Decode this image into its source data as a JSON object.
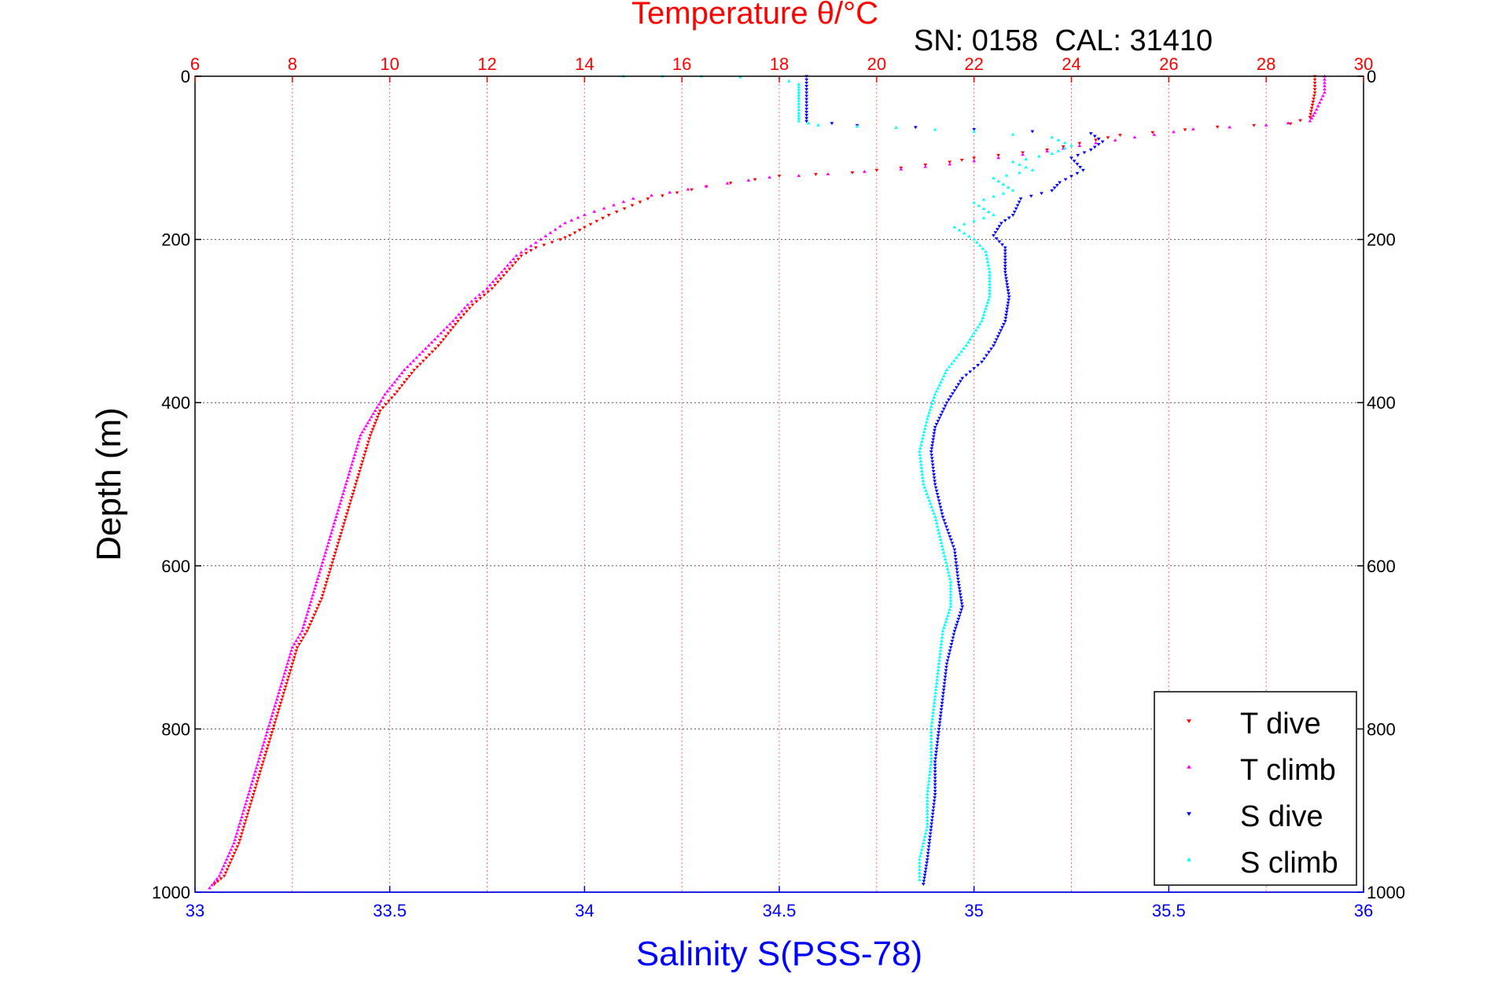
{
  "chart_data": {
    "type": "scatter",
    "title_top": "Temperature θ/°C",
    "annotation": "SN: 0158  CAL: 31410",
    "xlabel": "Salinity S(PSS-78)",
    "ylabel": "Depth (m)",
    "y_axis": {
      "range": [
        0,
        1000
      ],
      "reversed": true,
      "ticks": [
        0,
        200,
        400,
        600,
        800,
        1000
      ],
      "grid": true
    },
    "x_bottom": {
      "quantity": "salinity",
      "range": [
        33,
        36
      ],
      "ticks": [
        "33",
        "33.5",
        "34",
        "34.5",
        "35",
        "35.5",
        "36"
      ],
      "color": "#0000ff"
    },
    "x_top": {
      "quantity": "temperature",
      "range": [
        6,
        30
      ],
      "ticks": [
        "6",
        "8",
        "10",
        "12",
        "14",
        "16",
        "18",
        "20",
        "22",
        "24",
        "26",
        "28",
        "30"
      ],
      "color": "#ff0000",
      "grid": true
    },
    "legend": {
      "placement": "bottom-right",
      "entries": [
        "T dive",
        "T climb",
        "S dive",
        "S climb"
      ]
    },
    "series": [
      {
        "name": "T dive",
        "axis": "temperature",
        "color": "#ff0000",
        "marker": "triangle-down",
        "points": [
          [
            29.0,
            0
          ],
          [
            29.0,
            20
          ],
          [
            28.9,
            50
          ],
          [
            28.5,
            58
          ],
          [
            27.0,
            62
          ],
          [
            25.0,
            72
          ],
          [
            24.5,
            78
          ],
          [
            23.5,
            90
          ],
          [
            22.0,
            100
          ],
          [
            21.5,
            105
          ],
          [
            20.5,
            112
          ],
          [
            19.5,
            118
          ],
          [
            18.0,
            122
          ],
          [
            16.5,
            135
          ],
          [
            15.3,
            150
          ],
          [
            14.5,
            170
          ],
          [
            14.0,
            185
          ],
          [
            13.7,
            195
          ],
          [
            13.5,
            200
          ],
          [
            13.0,
            210
          ],
          [
            12.7,
            220
          ],
          [
            12.4,
            240
          ],
          [
            12.1,
            260
          ],
          [
            11.7,
            280
          ],
          [
            11.4,
            300
          ],
          [
            11.0,
            330
          ],
          [
            10.5,
            360
          ],
          [
            10.1,
            390
          ],
          [
            9.8,
            410
          ],
          [
            9.6,
            440
          ],
          [
            9.4,
            480
          ],
          [
            9.2,
            520
          ],
          [
            9.0,
            560
          ],
          [
            8.8,
            600
          ],
          [
            8.6,
            640
          ],
          [
            8.3,
            680
          ],
          [
            8.1,
            700
          ],
          [
            7.9,
            740
          ],
          [
            7.7,
            780
          ],
          [
            7.5,
            820
          ],
          [
            7.3,
            860
          ],
          [
            7.1,
            900
          ],
          [
            6.9,
            940
          ],
          [
            6.6,
            980
          ],
          [
            6.4,
            990
          ]
        ]
      },
      {
        "name": "T climb",
        "axis": "temperature",
        "color": "#ff00ff",
        "marker": "triangle-up",
        "points": [
          [
            29.2,
            0
          ],
          [
            29.2,
            20
          ],
          [
            29.0,
            45
          ],
          [
            28.9,
            55
          ],
          [
            28.0,
            60
          ],
          [
            26.5,
            65
          ],
          [
            25.3,
            75
          ],
          [
            24.5,
            82
          ],
          [
            23.5,
            92
          ],
          [
            22.5,
            100
          ],
          [
            21.5,
            108
          ],
          [
            20.5,
            114
          ],
          [
            19.0,
            120
          ],
          [
            17.8,
            124
          ],
          [
            16.5,
            135
          ],
          [
            15.0,
            150
          ],
          [
            14.0,
            170
          ],
          [
            13.6,
            180
          ],
          [
            13.1,
            200
          ],
          [
            12.6,
            220
          ],
          [
            12.3,
            240
          ],
          [
            12.0,
            260
          ],
          [
            11.6,
            280
          ],
          [
            11.3,
            300
          ],
          [
            10.8,
            330
          ],
          [
            10.3,
            360
          ],
          [
            9.9,
            390
          ],
          [
            9.7,
            410
          ],
          [
            9.4,
            440
          ],
          [
            9.2,
            480
          ],
          [
            9.0,
            520
          ],
          [
            8.8,
            560
          ],
          [
            8.6,
            600
          ],
          [
            8.4,
            640
          ],
          [
            8.2,
            680
          ],
          [
            8.0,
            700
          ],
          [
            7.8,
            740
          ],
          [
            7.6,
            780
          ],
          [
            7.4,
            820
          ],
          [
            7.2,
            860
          ],
          [
            7.0,
            900
          ],
          [
            6.8,
            940
          ],
          [
            6.5,
            980
          ],
          [
            6.3,
            995
          ]
        ]
      },
      {
        "name": "S dive",
        "axis": "salinity",
        "color": "#0000ff",
        "marker": "triangle-down",
        "points": [
          [
            34.57,
            0
          ],
          [
            34.57,
            20
          ],
          [
            34.57,
            40
          ],
          [
            34.57,
            55
          ],
          [
            34.7,
            60
          ],
          [
            35.0,
            65
          ],
          [
            35.3,
            70
          ],
          [
            35.33,
            80
          ],
          [
            35.3,
            90
          ],
          [
            35.25,
            100
          ],
          [
            35.28,
            115
          ],
          [
            35.22,
            130
          ],
          [
            35.2,
            140
          ],
          [
            35.12,
            150
          ],
          [
            35.1,
            170
          ],
          [
            35.07,
            180
          ],
          [
            35.05,
            195
          ],
          [
            35.08,
            210
          ],
          [
            35.08,
            240
          ],
          [
            35.09,
            270
          ],
          [
            35.08,
            300
          ],
          [
            35.05,
            330
          ],
          [
            35.02,
            350
          ],
          [
            34.97,
            370
          ],
          [
            34.93,
            400
          ],
          [
            34.9,
            430
          ],
          [
            34.89,
            460
          ],
          [
            34.9,
            500
          ],
          [
            34.92,
            540
          ],
          [
            34.95,
            580
          ],
          [
            34.96,
            620
          ],
          [
            34.97,
            650
          ],
          [
            34.95,
            680
          ],
          [
            34.93,
            720
          ],
          [
            34.92,
            760
          ],
          [
            34.91,
            800
          ],
          [
            34.9,
            840
          ],
          [
            34.9,
            880
          ],
          [
            34.89,
            920
          ],
          [
            34.88,
            960
          ],
          [
            34.87,
            990
          ]
        ]
      },
      {
        "name": "S climb",
        "axis": "salinity",
        "color": "#00ffff",
        "marker": "triangle-up",
        "points": [
          [
            34.1,
            0
          ],
          [
            34.3,
            0
          ],
          [
            34.5,
            2
          ],
          [
            34.55,
            10
          ],
          [
            34.55,
            20
          ],
          [
            34.55,
            30
          ],
          [
            34.55,
            45
          ],
          [
            34.55,
            55
          ],
          [
            34.6,
            60
          ],
          [
            34.8,
            63
          ],
          [
            35.0,
            68
          ],
          [
            35.2,
            75
          ],
          [
            35.25,
            85
          ],
          [
            35.2,
            95
          ],
          [
            35.1,
            105
          ],
          [
            35.15,
            115
          ],
          [
            35.05,
            125
          ],
          [
            35.1,
            140
          ],
          [
            35.0,
            155
          ],
          [
            35.05,
            170
          ],
          [
            34.95,
            185
          ],
          [
            35.0,
            200
          ],
          [
            35.03,
            215
          ],
          [
            35.04,
            240
          ],
          [
            35.04,
            270
          ],
          [
            35.02,
            300
          ],
          [
            34.98,
            330
          ],
          [
            34.93,
            360
          ],
          [
            34.9,
            390
          ],
          [
            34.88,
            420
          ],
          [
            34.86,
            460
          ],
          [
            34.87,
            500
          ],
          [
            34.9,
            540
          ],
          [
            34.92,
            580
          ],
          [
            34.94,
            620
          ],
          [
            34.94,
            650
          ],
          [
            34.92,
            680
          ],
          [
            34.91,
            720
          ],
          [
            34.9,
            760
          ],
          [
            34.89,
            800
          ],
          [
            34.89,
            840
          ],
          [
            34.88,
            880
          ],
          [
            34.88,
            920
          ],
          [
            34.86,
            960
          ],
          [
            34.86,
            985
          ]
        ]
      }
    ]
  }
}
